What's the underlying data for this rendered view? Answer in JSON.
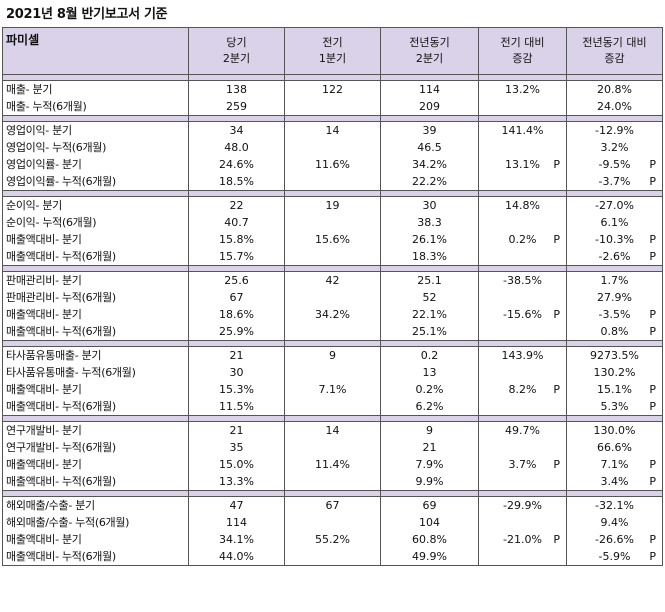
{
  "title": "2021년 8월 반기보고서 기준",
  "headers": [
    {
      "line1": "파미셀",
      "line2": ""
    },
    {
      "line1": "당기",
      "line2": "2분기"
    },
    {
      "line1": "전기",
      "line2": "1분기"
    },
    {
      "line1": "전년동기",
      "line2": "2분기"
    },
    {
      "line1": "전기 대비",
      "line2": "증감"
    },
    {
      "line1": "전년동기 대비",
      "line2": "증감"
    }
  ],
  "sections": [
    {
      "rows": [
        {
          "label": "매출- 분기",
          "cur": "138",
          "prev": "122",
          "yoy": "114",
          "qoq": "13.2%",
          "qoq_p": "",
          "yoyc": "20.8%",
          "yoy_p": ""
        },
        {
          "label": "매출- 누적(6개월)",
          "cur": "259",
          "prev": "",
          "yoy": "209",
          "qoq": "",
          "qoq_p": "",
          "yoyc": "24.0%",
          "yoy_p": ""
        }
      ]
    },
    {
      "rows": [
        {
          "label": "영업이익- 분기",
          "cur": "34",
          "prev": "14",
          "yoy": "39",
          "qoq": "141.4%",
          "qoq_p": "",
          "yoyc": "-12.9%",
          "yoy_p": ""
        },
        {
          "label": "영업이익- 누적(6개월)",
          "cur": "48.0",
          "prev": "",
          "yoy": "46.5",
          "qoq": "",
          "qoq_p": "",
          "yoyc": "3.2%",
          "yoy_p": ""
        },
        {
          "label": "영업이익률- 분기",
          "cur": "24.6%",
          "prev": "11.6%",
          "yoy": "34.2%",
          "qoq": "13.1%",
          "qoq_p": "P",
          "yoyc": "-9.5%",
          "yoy_p": "P"
        },
        {
          "label": "영업이익률- 누적(6개월)",
          "cur": "18.5%",
          "prev": "",
          "yoy": "22.2%",
          "qoq": "",
          "qoq_p": "",
          "yoyc": "-3.7%",
          "yoy_p": "P"
        }
      ]
    },
    {
      "rows": [
        {
          "label": "순이익- 분기",
          "cur": "22",
          "prev": "19",
          "yoy": "30",
          "qoq": "14.8%",
          "qoq_p": "",
          "yoyc": "-27.0%",
          "yoy_p": ""
        },
        {
          "label": "순이익- 누적(6개월)",
          "cur": "40.7",
          "prev": "",
          "yoy": "38.3",
          "qoq": "",
          "qoq_p": "",
          "yoyc": "6.1%",
          "yoy_p": ""
        },
        {
          "label": "매출액대비- 분기",
          "cur": "15.8%",
          "prev": "15.6%",
          "yoy": "26.1%",
          "qoq": "0.2%",
          "qoq_p": "P",
          "yoyc": "-10.3%",
          "yoy_p": "P"
        },
        {
          "label": "매출액대비- 누적(6개월)",
          "cur": "15.7%",
          "prev": "",
          "yoy": "18.3%",
          "qoq": "",
          "qoq_p": "",
          "yoyc": "-2.6%",
          "yoy_p": "P"
        }
      ]
    },
    {
      "rows": [
        {
          "label": "판매관리비- 분기",
          "cur": "25.6",
          "prev": "42",
          "yoy": "25.1",
          "qoq": "-38.5%",
          "qoq_p": "",
          "yoyc": "1.7%",
          "yoy_p": ""
        },
        {
          "label": "판매관리비- 누적(6개월)",
          "cur": "67",
          "prev": "",
          "yoy": "52",
          "qoq": "",
          "qoq_p": "",
          "yoyc": "27.9%",
          "yoy_p": ""
        },
        {
          "label": "매출액대비- 분기",
          "cur": "18.6%",
          "prev": "34.2%",
          "yoy": "22.1%",
          "qoq": "-15.6%",
          "qoq_p": "P",
          "yoyc": "-3.5%",
          "yoy_p": "P"
        },
        {
          "label": "매출액대비- 누적(6개월)",
          "cur": "25.9%",
          "prev": "",
          "yoy": "25.1%",
          "qoq": "",
          "qoq_p": "",
          "yoyc": "0.8%",
          "yoy_p": "P"
        }
      ]
    },
    {
      "rows": [
        {
          "label": "타사품유통매출- 분기",
          "cur": "21",
          "prev": "9",
          "yoy": "0.2",
          "qoq": "143.9%",
          "qoq_p": "",
          "yoyc": "9273.5%",
          "yoy_p": ""
        },
        {
          "label": "타사품유통매출- 누적(6개월)",
          "cur": "30",
          "prev": "",
          "yoy": "13",
          "qoq": "",
          "qoq_p": "",
          "yoyc": "130.2%",
          "yoy_p": ""
        },
        {
          "label": "매출액대비- 분기",
          "cur": "15.3%",
          "prev": "7.1%",
          "yoy": "0.2%",
          "qoq": "8.2%",
          "qoq_p": "P",
          "yoyc": "15.1%",
          "yoy_p": "P"
        },
        {
          "label": "매출액대비- 누적(6개월)",
          "cur": "11.5%",
          "prev": "",
          "yoy": "6.2%",
          "qoq": "",
          "qoq_p": "",
          "yoyc": "5.3%",
          "yoy_p": "P"
        }
      ]
    },
    {
      "rows": [
        {
          "label": "연구개발비- 분기",
          "cur": "21",
          "prev": "14",
          "yoy": "9",
          "qoq": "49.7%",
          "qoq_p": "",
          "yoyc": "130.0%",
          "yoy_p": ""
        },
        {
          "label": "연구개발비- 누적(6개월)",
          "cur": "35",
          "prev": "",
          "yoy": "21",
          "qoq": "",
          "qoq_p": "",
          "yoyc": "66.6%",
          "yoy_p": ""
        },
        {
          "label": "매출액대비- 분기",
          "cur": "15.0%",
          "prev": "11.4%",
          "yoy": "7.9%",
          "qoq": "3.7%",
          "qoq_p": "P",
          "yoyc": "7.1%",
          "yoy_p": "P"
        },
        {
          "label": "매출액대비- 누적(6개월)",
          "cur": "13.3%",
          "prev": "",
          "yoy": "9.9%",
          "qoq": "",
          "qoq_p": "",
          "yoyc": "3.4%",
          "yoy_p": "P"
        }
      ]
    },
    {
      "rows": [
        {
          "label": "해외매출/수출- 분기",
          "cur": "47",
          "prev": "67",
          "yoy": "69",
          "qoq": "-29.9%",
          "qoq_p": "",
          "yoyc": "-32.1%",
          "yoy_p": ""
        },
        {
          "label": "해외매출/수출- 누적(6개월)",
          "cur": "114",
          "prev": "",
          "yoy": "104",
          "qoq": "",
          "qoq_p": "",
          "yoyc": "9.4%",
          "yoy_p": ""
        },
        {
          "label": "매출액대비- 분기",
          "cur": "34.1%",
          "prev": "55.2%",
          "yoy": "60.8%",
          "qoq": "-21.0%",
          "qoq_p": "P",
          "yoyc": "-26.6%",
          "yoy_p": "P"
        },
        {
          "label": "매출액대비- 누적(6개월)",
          "cur": "44.0%",
          "prev": "",
          "yoy": "49.9%",
          "qoq": "",
          "qoq_p": "",
          "yoyc": "-5.9%",
          "yoy_p": "P"
        }
      ]
    }
  ]
}
